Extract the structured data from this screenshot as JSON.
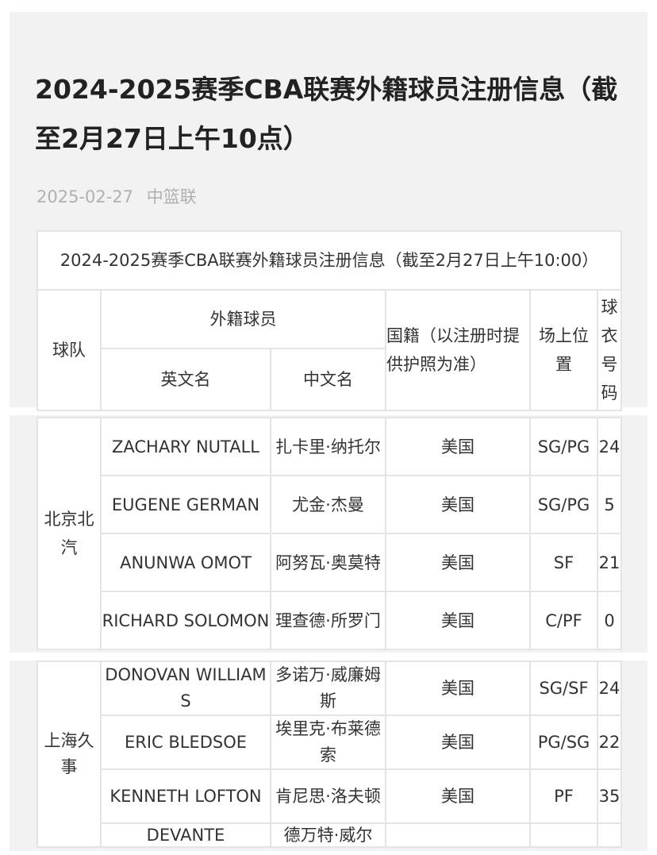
{
  "article": {
    "title": "2024-2025赛季CBA联赛外籍球员注册信息（截至2月27日上午10点）",
    "date": "2025-02-27",
    "source": "中篮联"
  },
  "table": {
    "caption": "2024-2025赛季CBA联赛外籍球员注册信息（截至2月27日上午10:00）",
    "headers": {
      "team": "球队",
      "player_group": "外籍球员",
      "english_name": "英文名",
      "chinese_name": "中文名",
      "nationality": "国籍（以注册时提供护照为准）",
      "position": "场上位置",
      "number": "球衣号码"
    },
    "groups": [
      {
        "team": "北京北汽",
        "rows": [
          {
            "en": "ZACHARY NUTALL",
            "cn": "扎卡里·纳托尔",
            "nat": "美国",
            "pos": "SG/PG",
            "num": "24"
          },
          {
            "en": "EUGENE GERMAN",
            "cn": "尤金·杰曼",
            "nat": "美国",
            "pos": "SG/PG",
            "num": "5"
          },
          {
            "en": "ANUNWA OMOT",
            "cn": "阿努瓦·奥莫特",
            "nat": "美国",
            "pos": "SF",
            "num": "21"
          },
          {
            "en": "RICHARD SOLOMON",
            "cn": "理查德·所罗门",
            "nat": "美国",
            "pos": "C/PF",
            "num": "0"
          }
        ]
      },
      {
        "team": "上海久事",
        "rows": [
          {
            "en": "DONOVAN WILLIAMS",
            "cn": "多诺万·威廉姆斯",
            "nat": "美国",
            "pos": "SG/SF",
            "num": "24"
          },
          {
            "en": "ERIC BLEDSOE",
            "cn": "埃里克·布莱德索",
            "nat": "美国",
            "pos": "PG/SG",
            "num": "22"
          },
          {
            "en": "KENNETH LOFTON",
            "cn": "肯尼思·洛夫顿",
            "nat": "美国",
            "pos": "PF",
            "num": "35"
          },
          {
            "en": "DEVANTE",
            "cn": "德万特·威尔",
            "nat": "",
            "pos": "",
            "num": ""
          }
        ]
      }
    ]
  }
}
